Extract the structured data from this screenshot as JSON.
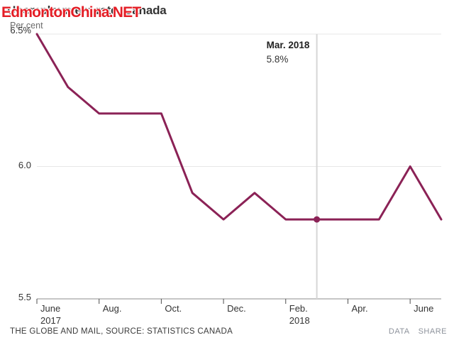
{
  "watermark": {
    "text": "EdmontonChina.NET",
    "color": "#e41e26"
  },
  "header": {
    "title": "Unemployment rate, Canada",
    "unit_label": "Per cent"
  },
  "chart_data": {
    "type": "line",
    "title": "Unemployment rate, Canada",
    "ylabel": "Per cent",
    "ylim": [
      5.5,
      6.5
    ],
    "grid": "horizontal",
    "x": [
      "June 2017",
      "July 2017",
      "Aug. 2017",
      "Sept. 2017",
      "Oct. 2017",
      "Nov. 2017",
      "Dec. 2017",
      "Jan. 2018",
      "Feb. 2018",
      "Mar. 2018",
      "Apr. 2018",
      "May 2018",
      "June 2018",
      "July 2018"
    ],
    "values": [
      6.5,
      6.3,
      6.2,
      6.2,
      6.2,
      5.9,
      5.8,
      5.9,
      5.8,
      5.8,
      5.8,
      5.8,
      6.0,
      5.8
    ],
    "series_color": "#8b2256",
    "yticks": [
      {
        "label": "6.5%",
        "value": 6.5
      },
      {
        "label": "6.0",
        "value": 6.0
      },
      {
        "label": "5.5",
        "value": 5.5
      }
    ],
    "xticks": [
      {
        "index": 0,
        "label": "June",
        "sublabel": "2017"
      },
      {
        "index": 2,
        "label": "Aug."
      },
      {
        "index": 4,
        "label": "Oct."
      },
      {
        "index": 6,
        "label": "Dec."
      },
      {
        "index": 8,
        "label": "Feb.",
        "sublabel": "2018"
      },
      {
        "index": 10,
        "label": "Apr."
      },
      {
        "index": 12,
        "label": "June"
      }
    ],
    "annotation": {
      "index": 9,
      "label": "Mar. 2018",
      "value_label": "5.8%"
    }
  },
  "footer": {
    "credit": "THE GLOBE AND MAIL, SOURCE: STATISTICS CANADA",
    "data_label": "DATA",
    "share_label": "SHARE"
  }
}
